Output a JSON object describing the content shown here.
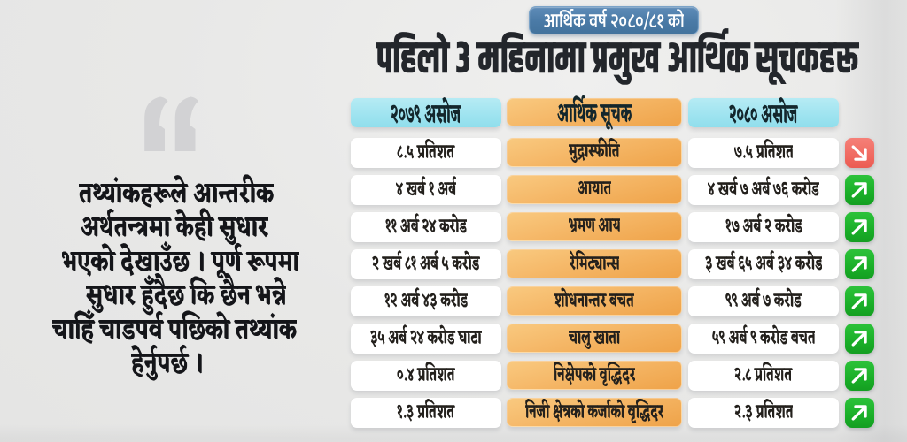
{
  "badge": {
    "label": "आर्थिक वर्ष २०८०/८१ को"
  },
  "chart_data": {
    "type": "table",
    "title": "पहिलो ३ महिनामा प्रमुख आर्थिक सूचकहरू",
    "subtitle": "आर्थिक वर्ष २०८०/८१ को",
    "columns": [
      "२०७९ असोज",
      "आर्थिक सूचक",
      "२०८० असोज"
    ],
    "rows": [
      {
        "indicator": "मुद्रास्फीति",
        "asoj_2079": "८.५ प्रतिशत",
        "asoj_2080": "७.५ प्रतिशत",
        "trend": "down"
      },
      {
        "indicator": "आयात",
        "asoj_2079": "४ खर्ब १ अर्ब",
        "asoj_2080": "४ खर्ब ७ अर्ब ७६ करोड",
        "trend": "up"
      },
      {
        "indicator": "भ्रमण आय",
        "asoj_2079": "११ अर्ब २४ करोड",
        "asoj_2080": "१७ अर्ब २ करोड",
        "trend": "up"
      },
      {
        "indicator": "रेमिट्यान्स",
        "asoj_2079": "२ खर्ब ८१ अर्ब ५ करोड",
        "asoj_2080": "३ खर्ब ६५ अर्ब ३४ करोड",
        "trend": "up"
      },
      {
        "indicator": "शोधनान्तर बचत",
        "asoj_2079": "१२ अर्ब ४३ करोड",
        "asoj_2080": "९९ अर्ब ७ करोड",
        "trend": "up"
      },
      {
        "indicator": "चालु खाता",
        "asoj_2079": "३५ अर्ब २४ करोड घाटा",
        "asoj_2080": "५९ अर्ब ९ करोड बचत",
        "trend": "up"
      },
      {
        "indicator": "निक्षेपको वृद्धिदर",
        "asoj_2079": "०.४ प्रतिशत",
        "asoj_2080": "२.८ प्रतिशत",
        "trend": "up"
      },
      {
        "indicator": "निजी क्षेत्रको कर्जाको वृद्धिदर",
        "asoj_2079": "१.३ प्रतिशत",
        "asoj_2080": "२.३ प्रतिशत",
        "trend": "up"
      }
    ]
  },
  "title": "पहिलो ३ महिनामा प्रमुख आर्थिक सूचकहरू",
  "quote": {
    "lines": [
      "तथ्यांकहरूले आन्तरीक",
      "अर्थतन्त्रमा केही सुधार",
      "भएको देखाउँछ । पूर्ण रूपमा",
      "सुधार हुँदैछ कि छैन भन्ने",
      "चाहिँ चाडपर्व पछिको तथ्यांक",
      "हेर्नुपर्छ ।"
    ],
    "full_text": "तथ्यांकहरूले आन्तरीक अर्थतन्त्रमा केही सुधार भएको देखाउँछ । पूर्ण रूपमा सुधार हुँदैछ कि छैन भन्ने चाहिँ चाडपर्व पछिको तथ्यांक हेर्नुपर्छ ।"
  },
  "table": {
    "headers": {
      "prev_year": "२०७९ असोज",
      "indicator": "आर्थिक सूचक",
      "current_year": "२०८० असोज"
    },
    "rows": [
      {
        "prev": "८.५ प्रतिशत",
        "indicator": "मुद्रास्फीति",
        "current": "७.५ प्रतिशत",
        "trend": "down"
      },
      {
        "prev": "४ खर्ब १ अर्ब",
        "indicator": "आयात",
        "current": "४ खर्ब ७ अर्ब ७६ करोड",
        "trend": "up"
      },
      {
        "prev": "११ अर्ब २४ करोड",
        "indicator": "भ्रमण आय",
        "current": "१७ अर्ब २ करोड",
        "trend": "up"
      },
      {
        "prev": "२ खर्ब ८१ अर्ब ५ करोड",
        "indicator": "रेमिट्यान्स",
        "current": "३ खर्ब ६५ अर्ब ३४ करोड",
        "trend": "up"
      },
      {
        "prev": "१२ अर्ब ४३ करोड",
        "indicator": "शोधनान्तर बचत",
        "current": "९९ अर्ब ७ करोड",
        "trend": "up"
      },
      {
        "prev": "३५ अर्ब २४ करोड घाटा",
        "indicator": "चालु खाता",
        "current": "५९ अर्ब ९ करोड बचत",
        "trend": "up"
      },
      {
        "prev": "०.४ प्रतिशत",
        "indicator": "निक्षेपको वृद्धिदर",
        "current": "२.८ प्रतिशत",
        "trend": "up"
      },
      {
        "prev": "१.३ प्रतिशत",
        "indicator": "निजी क्षेत्रको कर्जाको वृद्धिदर",
        "current": "२.३ प्रतिशत",
        "trend": "up"
      }
    ]
  },
  "colors": {
    "badge_blue": "#4d7dab",
    "header_cyan": "#a0e4f0",
    "indicator_orange": "#f5b767",
    "cell_white": "#ffffff",
    "trend_up_green": "#1cae2a",
    "trend_down_red": "#f06a61",
    "title_text": "#23262b",
    "quote_text": "#141519",
    "quote_mark_gray": "#d2d2d4"
  }
}
